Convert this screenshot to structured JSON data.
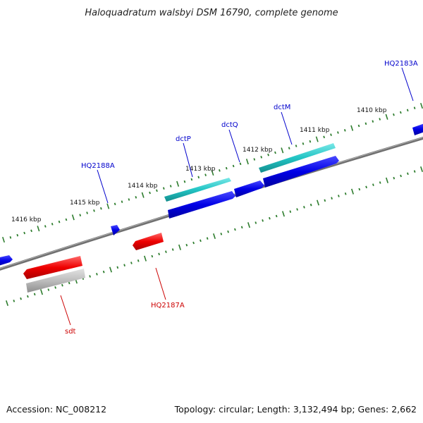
{
  "title": "Haloquadratum walsbyi DSM 16790, complete genome",
  "footer": {
    "accession": "Accession: NC_008212",
    "summary": "Topology: circular; Length: 3,132,494 bp; Genes: 2,662"
  },
  "colors": {
    "backbone": "#808080",
    "tick": "#2e7d2e",
    "forward_gene": "#0000e6",
    "forward_label": "#0000cc",
    "reverse_gene": "#ee0000",
    "reverse_label": "#cc0000",
    "cds_forward": "#22c4c4",
    "cds_reverse": "#b9b9b9"
  },
  "tick_labels": [
    "1416 kbp",
    "1415 kbp",
    "1414 kbp",
    "1413 kbp",
    "1412 kbp",
    "1411 kbp",
    "1410 kbp"
  ],
  "gene_labels": {
    "forward": [
      "HQ2188A",
      "dctP",
      "dctQ",
      "dctM",
      "HQ2183A"
    ],
    "reverse": [
      "HQ2187A",
      "sdt"
    ]
  }
}
